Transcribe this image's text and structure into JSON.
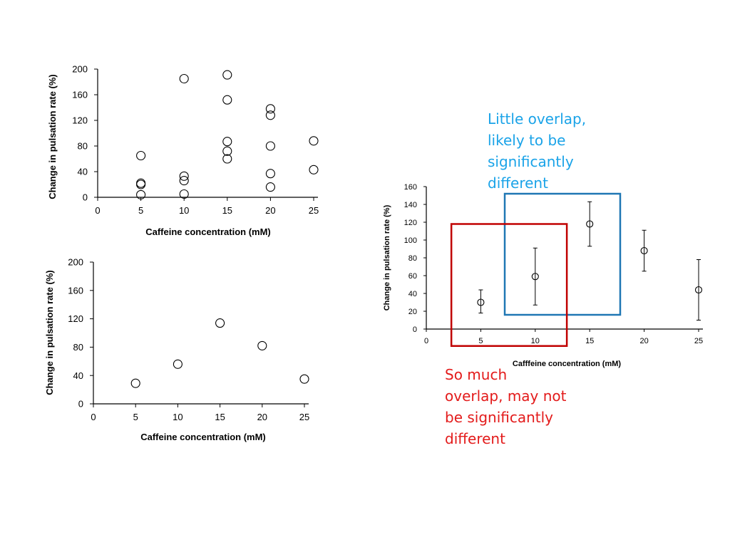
{
  "chart_data": [
    {
      "type": "scatter",
      "xlabel": "Caffeine concentration (mM)",
      "ylabel": "Change in pulsation rate (%)",
      "xticks": [
        0,
        5,
        10,
        15,
        20,
        25
      ],
      "yticks": [
        0,
        40,
        80,
        120,
        160,
        200
      ],
      "xlim": [
        0,
        25
      ],
      "ylim": [
        0,
        200
      ],
      "grid": false,
      "points": [
        [
          5,
          65
        ],
        [
          5,
          22
        ],
        [
          5,
          20
        ],
        [
          5,
          4
        ],
        [
          10,
          185
        ],
        [
          10,
          33
        ],
        [
          10,
          26
        ],
        [
          10,
          5
        ],
        [
          15,
          191
        ],
        [
          15,
          152
        ],
        [
          15,
          87
        ],
        [
          15,
          72
        ],
        [
          15,
          60
        ],
        [
          20,
          138
        ],
        [
          20,
          128
        ],
        [
          20,
          80
        ],
        [
          20,
          37
        ],
        [
          20,
          16
        ],
        [
          25,
          88
        ],
        [
          25,
          43
        ]
      ]
    },
    {
      "type": "scatter",
      "xlabel": "Caffeine concentration (mM)",
      "ylabel": "Change in pulsation rate (%)",
      "xticks": [
        0,
        5,
        10,
        15,
        20,
        25
      ],
      "yticks": [
        0,
        40,
        80,
        120,
        160,
        200
      ],
      "xlim": [
        0,
        25
      ],
      "ylim": [
        0,
        200
      ],
      "grid": false,
      "points": [
        [
          5,
          29
        ],
        [
          10,
          56
        ],
        [
          15,
          114
        ],
        [
          20,
          82
        ],
        [
          25,
          35
        ]
      ]
    },
    {
      "type": "scatter",
      "error_bars": true,
      "xlabel": "Cafffeine concentration (mM)",
      "ylabel": "Change in pulsation rate (%)",
      "xticks": [
        0,
        5,
        10,
        15,
        20,
        25
      ],
      "yticks": [
        0,
        20,
        40,
        60,
        80,
        100,
        120,
        140,
        160
      ],
      "xlim": [
        0,
        25
      ],
      "ylim": [
        0,
        160
      ],
      "grid": false,
      "points": [
        {
          "x": 5,
          "y": 30,
          "low": 18,
          "high": 44
        },
        {
          "x": 10,
          "y": 59,
          "low": 27,
          "high": 91
        },
        {
          "x": 15,
          "y": 118,
          "low": 93,
          "high": 143
        },
        {
          "x": 20,
          "y": 88,
          "low": 65,
          "high": 111
        },
        {
          "x": 25,
          "y": 44,
          "low": 10,
          "high": 78
        }
      ],
      "highlight_boxes": [
        {
          "name": "little-overlap-box",
          "color": "#1f77b4",
          "x_range": [
            7.2,
            17.8
          ],
          "y_range": [
            16,
            152
          ]
        },
        {
          "name": "so-much-overlap-box",
          "color": "#c00000",
          "x_range": [
            2.3,
            12.9
          ],
          "y_range": [
            -19,
            118
          ]
        }
      ]
    }
  ],
  "annotations": {
    "blue_text": "Little overlap,\nlikely to be\nsignificantly\ndifferent",
    "blue_color": "#1aa3e8",
    "red_text": "So much\noverlap, may not\nbe significantly\ndifferent",
    "red_color": "#e31b1b"
  }
}
